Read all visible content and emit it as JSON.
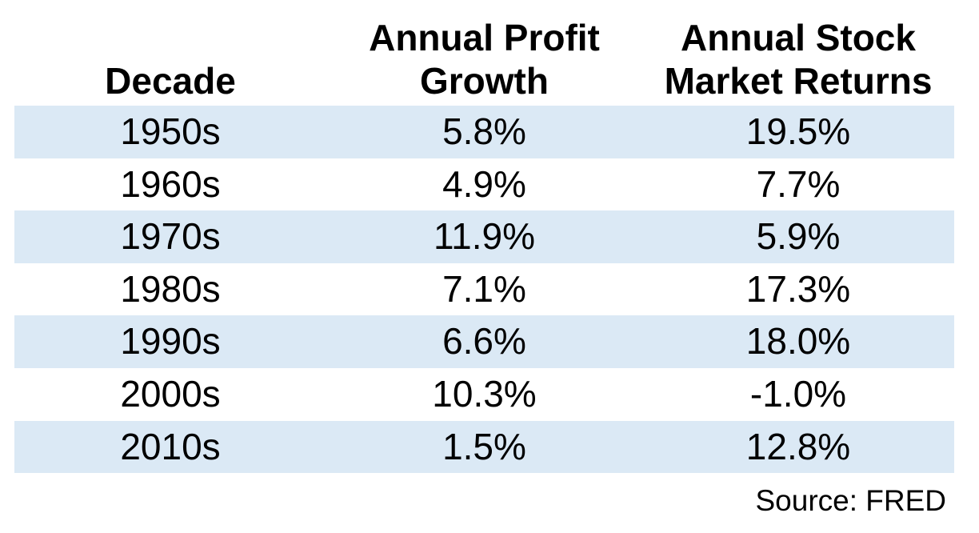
{
  "chart_data": {
    "type": "table",
    "title": "",
    "columns": [
      "Decade",
      "Annual Profit Growth",
      "Annual Stock Market Returns"
    ],
    "rows": [
      [
        "1950s",
        "5.8%",
        "19.5%"
      ],
      [
        "1960s",
        "4.9%",
        "7.7%"
      ],
      [
        "1970s",
        "11.9%",
        "5.9%"
      ],
      [
        "1980s",
        "7.1%",
        "17.3%"
      ],
      [
        "1990s",
        "6.6%",
        "18.0%"
      ],
      [
        "2000s",
        "10.3%",
        "-1.0%"
      ],
      [
        "2010s",
        "1.5%",
        "12.8%"
      ]
    ],
    "profit_growth_values_pct": [
      5.8,
      4.9,
      11.9,
      7.1,
      6.6,
      10.3,
      1.5
    ],
    "stock_market_returns_values_pct": [
      19.5,
      7.7,
      5.9,
      17.3,
      18.0,
      -1.0,
      12.8
    ],
    "source": "Source: FRED",
    "layout": {
      "stripe_rows": [
        0,
        2,
        4,
        6
      ],
      "stripe_color": "#dbe9f5",
      "background_color": "#ffffff",
      "text_color": "#000000"
    }
  },
  "table": {
    "headers": [
      {
        "line1": "",
        "line2": "Decade"
      },
      {
        "line1": "Annual Profit",
        "line2": "Growth"
      },
      {
        "line1": "Annual Stock",
        "line2": "Market Returns"
      }
    ],
    "rows": [
      [
        "1950s",
        "5.8%",
        "19.5%"
      ],
      [
        "1960s",
        "4.9%",
        "7.7%"
      ],
      [
        "1970s",
        "11.9%",
        "5.9%"
      ],
      [
        "1980s",
        "7.1%",
        "17.3%"
      ],
      [
        "1990s",
        "6.6%",
        "18.0%"
      ],
      [
        "2000s",
        "10.3%",
        "-1.0%"
      ],
      [
        "2010s",
        "1.5%",
        "12.8%"
      ]
    ],
    "source_note": "Source: FRED"
  }
}
